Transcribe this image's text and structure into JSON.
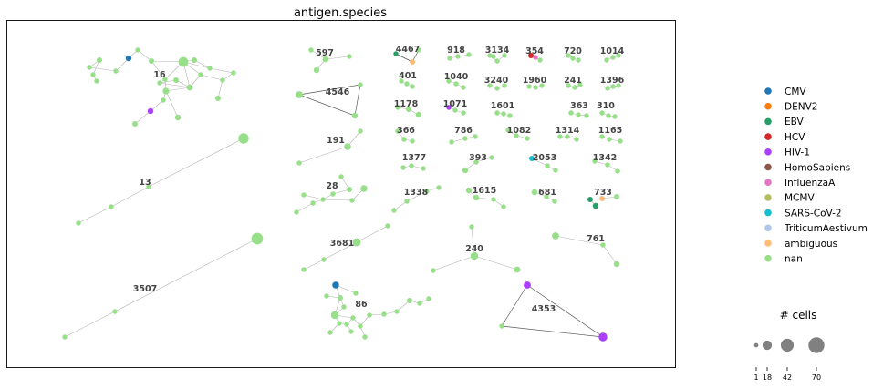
{
  "chart_data": {
    "type": "network",
    "title": "antigen.species",
    "legend": {
      "position": "right",
      "entries": [
        {
          "name": "CMV",
          "color": "#1f77b4"
        },
        {
          "name": "DENV2",
          "color": "#ff7f0e"
        },
        {
          "name": "EBV",
          "color": "#279e68"
        },
        {
          "name": "HCV",
          "color": "#d62728"
        },
        {
          "name": "HIV-1",
          "color": "#aa40fc"
        },
        {
          "name": "HomoSapiens",
          "color": "#8c564b"
        },
        {
          "name": "InfluenzaA",
          "color": "#e377c2"
        },
        {
          "name": "MCMV",
          "color": "#b5bd61"
        },
        {
          "name": "SARS-CoV-2",
          "color": "#17becf"
        },
        {
          "name": "TriticumAestivum",
          "color": "#aec7e8"
        },
        {
          "name": "ambiguous",
          "color": "#ffbb78"
        },
        {
          "name": "nan",
          "color": "#98df8a"
        }
      ]
    },
    "size_legend": {
      "title": "# cells",
      "values": [
        1,
        18,
        42,
        70
      ],
      "tick_labels": [
        "1",
        "18",
        "42",
        "70"
      ],
      "color": "#808080"
    },
    "clusters": [
      {
        "label": "16"
      },
      {
        "label": "597"
      },
      {
        "label": "4546"
      },
      {
        "label": "191"
      },
      {
        "label": "13"
      },
      {
        "label": "28"
      },
      {
        "label": "3681"
      },
      {
        "label": "3507"
      },
      {
        "label": "86"
      },
      {
        "label": "4467"
      },
      {
        "label": "918"
      },
      {
        "label": "3134"
      },
      {
        "label": "354"
      },
      {
        "label": "720"
      },
      {
        "label": "1014"
      },
      {
        "label": "401"
      },
      {
        "label": "1040"
      },
      {
        "label": "3240"
      },
      {
        "label": "1960"
      },
      {
        "label": "241"
      },
      {
        "label": "1396"
      },
      {
        "label": "1178"
      },
      {
        "label": "1071"
      },
      {
        "label": "1601"
      },
      {
        "label": "363"
      },
      {
        "label": "310"
      },
      {
        "label": "366"
      },
      {
        "label": "786"
      },
      {
        "label": "1082"
      },
      {
        "label": "1314"
      },
      {
        "label": "1165"
      },
      {
        "label": "1377"
      },
      {
        "label": "393"
      },
      {
        "label": "2053"
      },
      {
        "label": "1342"
      },
      {
        "label": "1338"
      },
      {
        "label": "1615"
      },
      {
        "label": "681"
      },
      {
        "label": "733"
      },
      {
        "label": "240"
      },
      {
        "label": "761"
      },
      {
        "label": "4353"
      }
    ]
  }
}
